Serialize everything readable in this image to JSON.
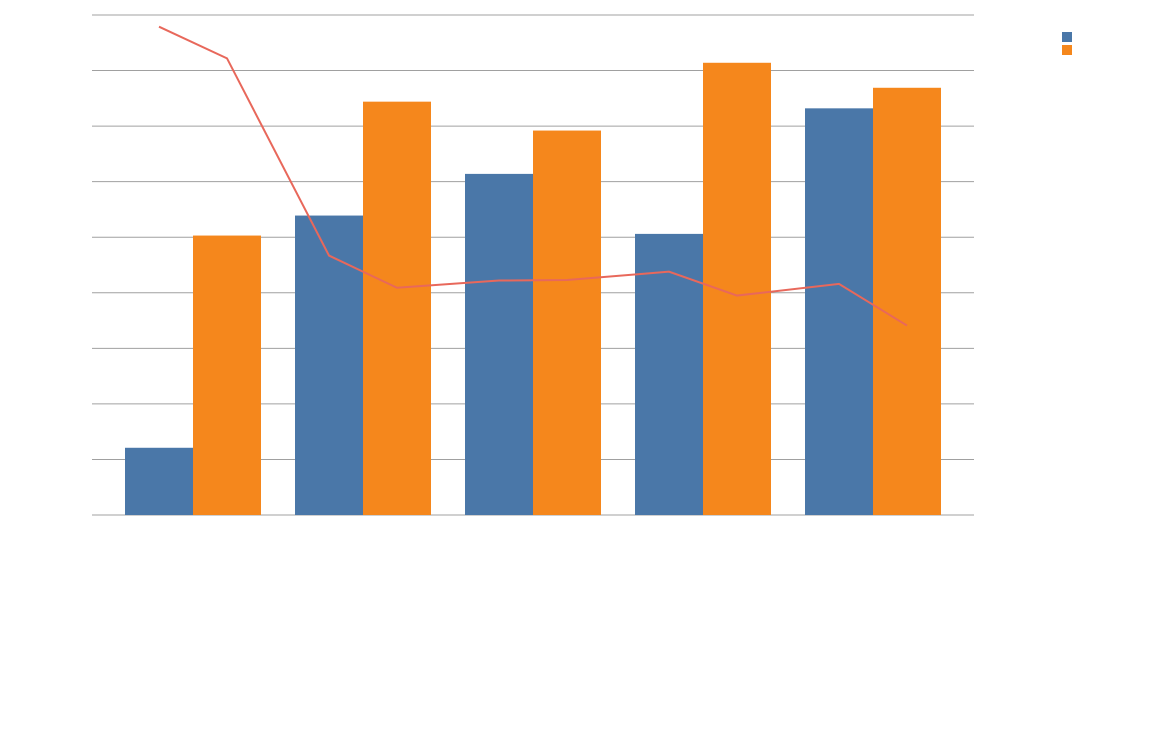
{
  "chart_data": [
    {
      "type": "bar",
      "categories": [
        null,
        null,
        null,
        null,
        null
      ],
      "series": [
        {
          "color": "#4a77a8",
          "values": [
            1.21,
            5.39,
            6.14,
            5.06,
            7.32
          ]
        },
        {
          "color": "#f5871c",
          "values": [
            5.03,
            7.44,
            6.92,
            8.14,
            7.69
          ]
        }
      ],
      "ylim": [
        0,
        9
      ],
      "yticks": [
        0,
        1,
        2,
        3,
        4,
        5,
        6,
        7,
        8,
        9
      ],
      "grid": true,
      "legend": "top-right"
    },
    {
      "type": "line",
      "categories": [
        null,
        null,
        null,
        null,
        null,
        null,
        null,
        null,
        null,
        null
      ],
      "series": [
        {
          "color": "#e8685b",
          "values": [
            8.79,
            8.22,
            4.67,
            4.09,
            4.22,
            4.23,
            4.38,
            3.95,
            4.16,
            3.41
          ]
        }
      ],
      "ylim": [
        0,
        9
      ]
    }
  ]
}
